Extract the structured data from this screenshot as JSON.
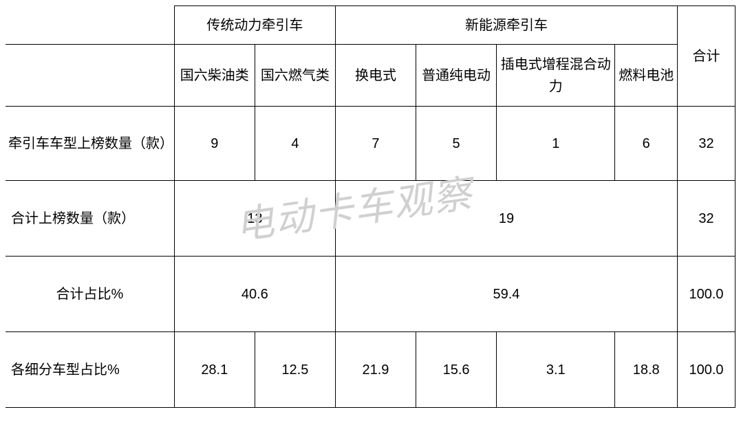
{
  "watermark": "电动卡车观察",
  "header_groups": {
    "traditional": "传统动力牵引车",
    "new_energy": "新能源牵引车",
    "total": "合计"
  },
  "sub_headers": {
    "diesel": "国六柴油类",
    "gas": "国六燃气类",
    "swap": "换电式",
    "bev": "普通纯电动",
    "phev": "插电式增程混合动力",
    "fuel_cell": "燃料电池"
  },
  "rows": {
    "model_count": {
      "label": "牵引车车型上榜数量（款）",
      "diesel": "9",
      "gas": "4",
      "swap": "7",
      "bev": "5",
      "phev": "1",
      "fuel_cell": "6",
      "total": "32"
    },
    "total_count": {
      "label": "合计上榜数量（款）",
      "traditional": "13",
      "new_energy": "19",
      "total": "32"
    },
    "total_pct": {
      "label": "合计占比%",
      "traditional": "40.6",
      "new_energy": "59.4",
      "total": "100.0"
    },
    "sub_pct": {
      "label": "各细分车型占比%",
      "diesel": "28.1",
      "gas": "12.5",
      "swap": "21.9",
      "bev": "15.6",
      "phev": "3.1",
      "fuel_cell": "18.8",
      "total": "100.0"
    }
  },
  "style": {
    "border_color": "#000000",
    "background_color": "#ffffff",
    "font_size": 20,
    "watermark_color": "#d0d0d0",
    "watermark_fontsize": 56
  }
}
